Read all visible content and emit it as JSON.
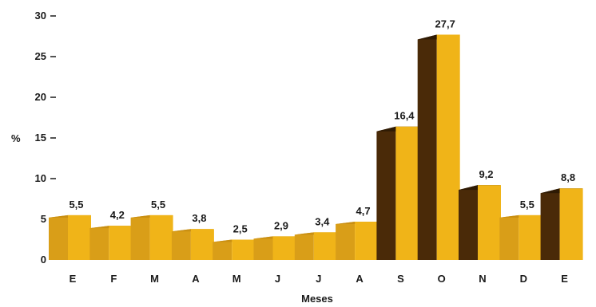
{
  "chart_data": {
    "type": "bar",
    "title": "",
    "xlabel": "Meses",
    "ylabel": "%",
    "categories": [
      "E",
      "F",
      "M",
      "A",
      "M",
      "J",
      "J",
      "A",
      "S",
      "O",
      "N",
      "D",
      "E"
    ],
    "values": [
      5.5,
      4.2,
      5.5,
      3.8,
      2.5,
      2.9,
      3.4,
      4.7,
      16.4,
      27.7,
      9.2,
      5.5,
      8.8
    ],
    "value_labels": [
      "5,5",
      "4,2",
      "5,5",
      "3,8",
      "2,5",
      "2,9",
      "3,4",
      "4,7",
      "16,4",
      "27,7",
      "9,2",
      "5,5",
      "8,8"
    ],
    "ylim": [
      0,
      30
    ],
    "yticks": [
      0,
      5,
      10,
      15,
      20,
      25,
      30
    ],
    "grid": false,
    "style": "3d",
    "colors": {
      "front": "#f0b418",
      "side": "#4a2a08",
      "side_light": "#d99e18"
    }
  }
}
